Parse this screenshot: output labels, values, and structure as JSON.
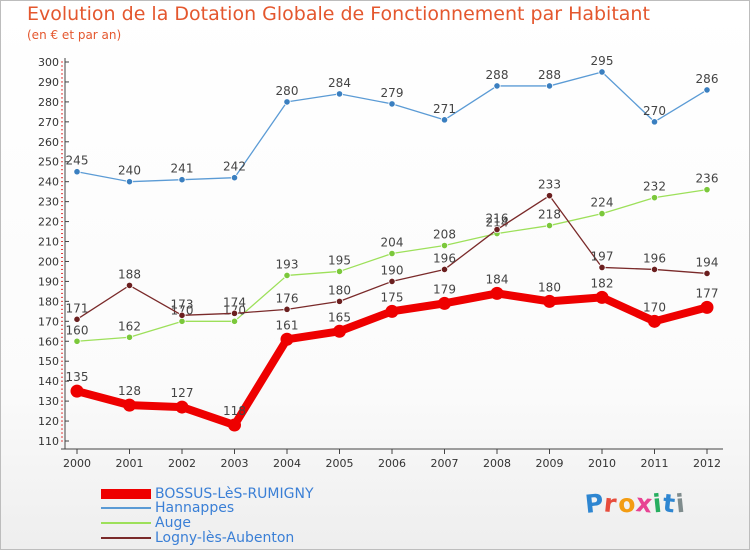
{
  "chart_data": {
    "type": "line",
    "title": "Evolution de la Dotation Globale de Fonctionnement par Habitant",
    "subtitle": "(en € et par an)",
    "xlabel": "",
    "ylabel": "",
    "x": [
      "2000",
      "2001",
      "2002",
      "2003",
      "2004",
      "2005",
      "2006",
      "2007",
      "2008",
      "2009",
      "2010",
      "2011",
      "2012"
    ],
    "ylim": [
      110,
      300
    ],
    "yticks": [
      110,
      120,
      130,
      140,
      150,
      160,
      170,
      180,
      190,
      200,
      210,
      220,
      230,
      240,
      250,
      260,
      270,
      280,
      290,
      300
    ],
    "grid": false,
    "legend": "bottom-left",
    "series": [
      {
        "name": "Hannappes",
        "color": "#5b9bd5",
        "point_color": "#3a7fc0",
        "values": [
          245,
          240,
          241,
          242,
          280,
          284,
          279,
          271,
          288,
          288,
          295,
          270,
          286
        ]
      },
      {
        "name": "Auge",
        "color": "#9de05a",
        "point_color": "#7bc83b",
        "values": [
          160,
          162,
          170,
          170,
          193,
          195,
          204,
          208,
          214,
          218,
          224,
          232,
          236
        ]
      },
      {
        "name": "Logny-lès-Aubenton",
        "color": "#7a2a2a",
        "point_color": "#6b1f1f",
        "values": [
          171,
          188,
          173,
          174,
          176,
          180,
          190,
          196,
          216,
          233,
          197,
          196,
          194
        ]
      },
      {
        "name": "BOSSUS-LèS-RUMIGNY",
        "color": "#ee0000",
        "point_color": "#ee0000",
        "values": [
          135,
          128,
          127,
          118,
          161,
          165,
          175,
          179,
          184,
          180,
          182,
          170,
          177
        ]
      }
    ],
    "legend_order": [
      "BOSSUS-LèS-RUMIGNY",
      "Hannappes",
      "Auge",
      "Logny-lès-Aubenton"
    ]
  },
  "logo": {
    "letters": [
      "P",
      "r",
      "o",
      "x",
      "i",
      "t",
      "i"
    ],
    "colors": [
      "#2e86d1",
      "#e74c3c",
      "#f39c12",
      "#e84393",
      "#27ae60",
      "#2e86d1",
      "#7f8c8d"
    ]
  }
}
